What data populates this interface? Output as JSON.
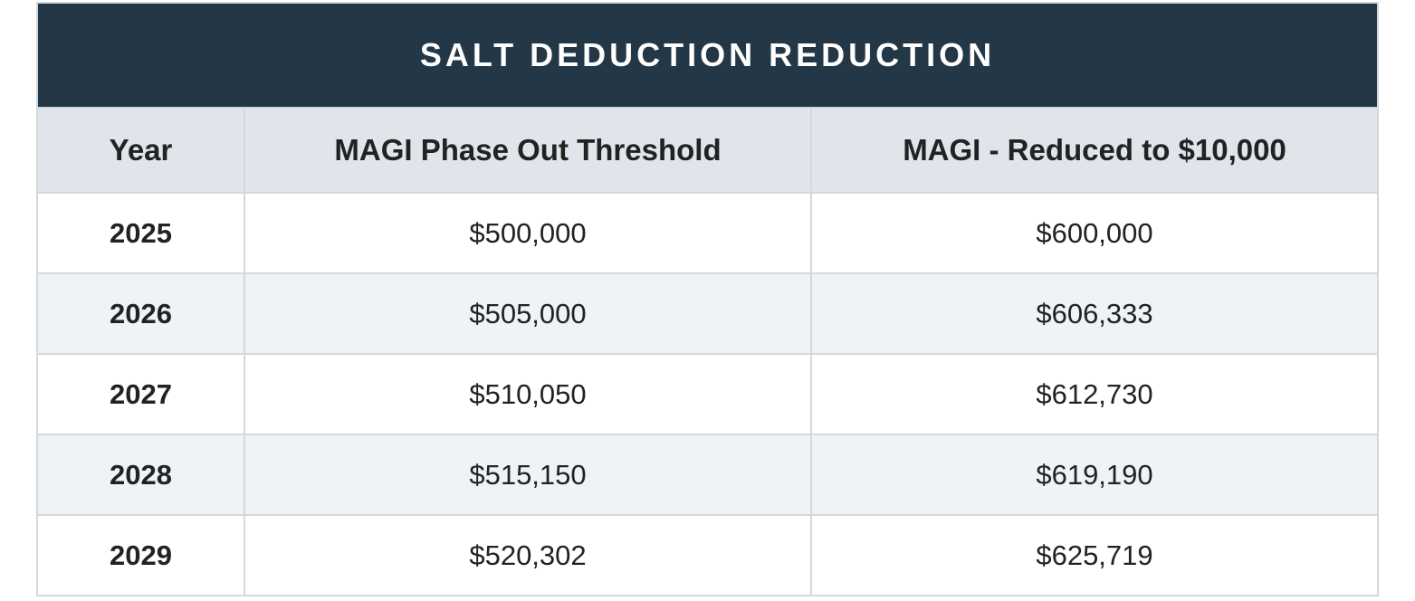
{
  "table": {
    "title": "SALT DEDUCTION REDUCTION",
    "headers": [
      "Year",
      "MAGI Phase Out Threshold",
      "MAGI - Reduced to $10,000"
    ],
    "rows": [
      [
        "2025",
        "$500,000",
        "$600,000"
      ],
      [
        "2026",
        "$505,000",
        "$606,333"
      ],
      [
        "2027",
        "$510,050",
        "$612,730"
      ],
      [
        "2028",
        "$515,150",
        "$619,190"
      ],
      [
        "2029",
        "$520,302",
        "$625,719"
      ]
    ]
  }
}
